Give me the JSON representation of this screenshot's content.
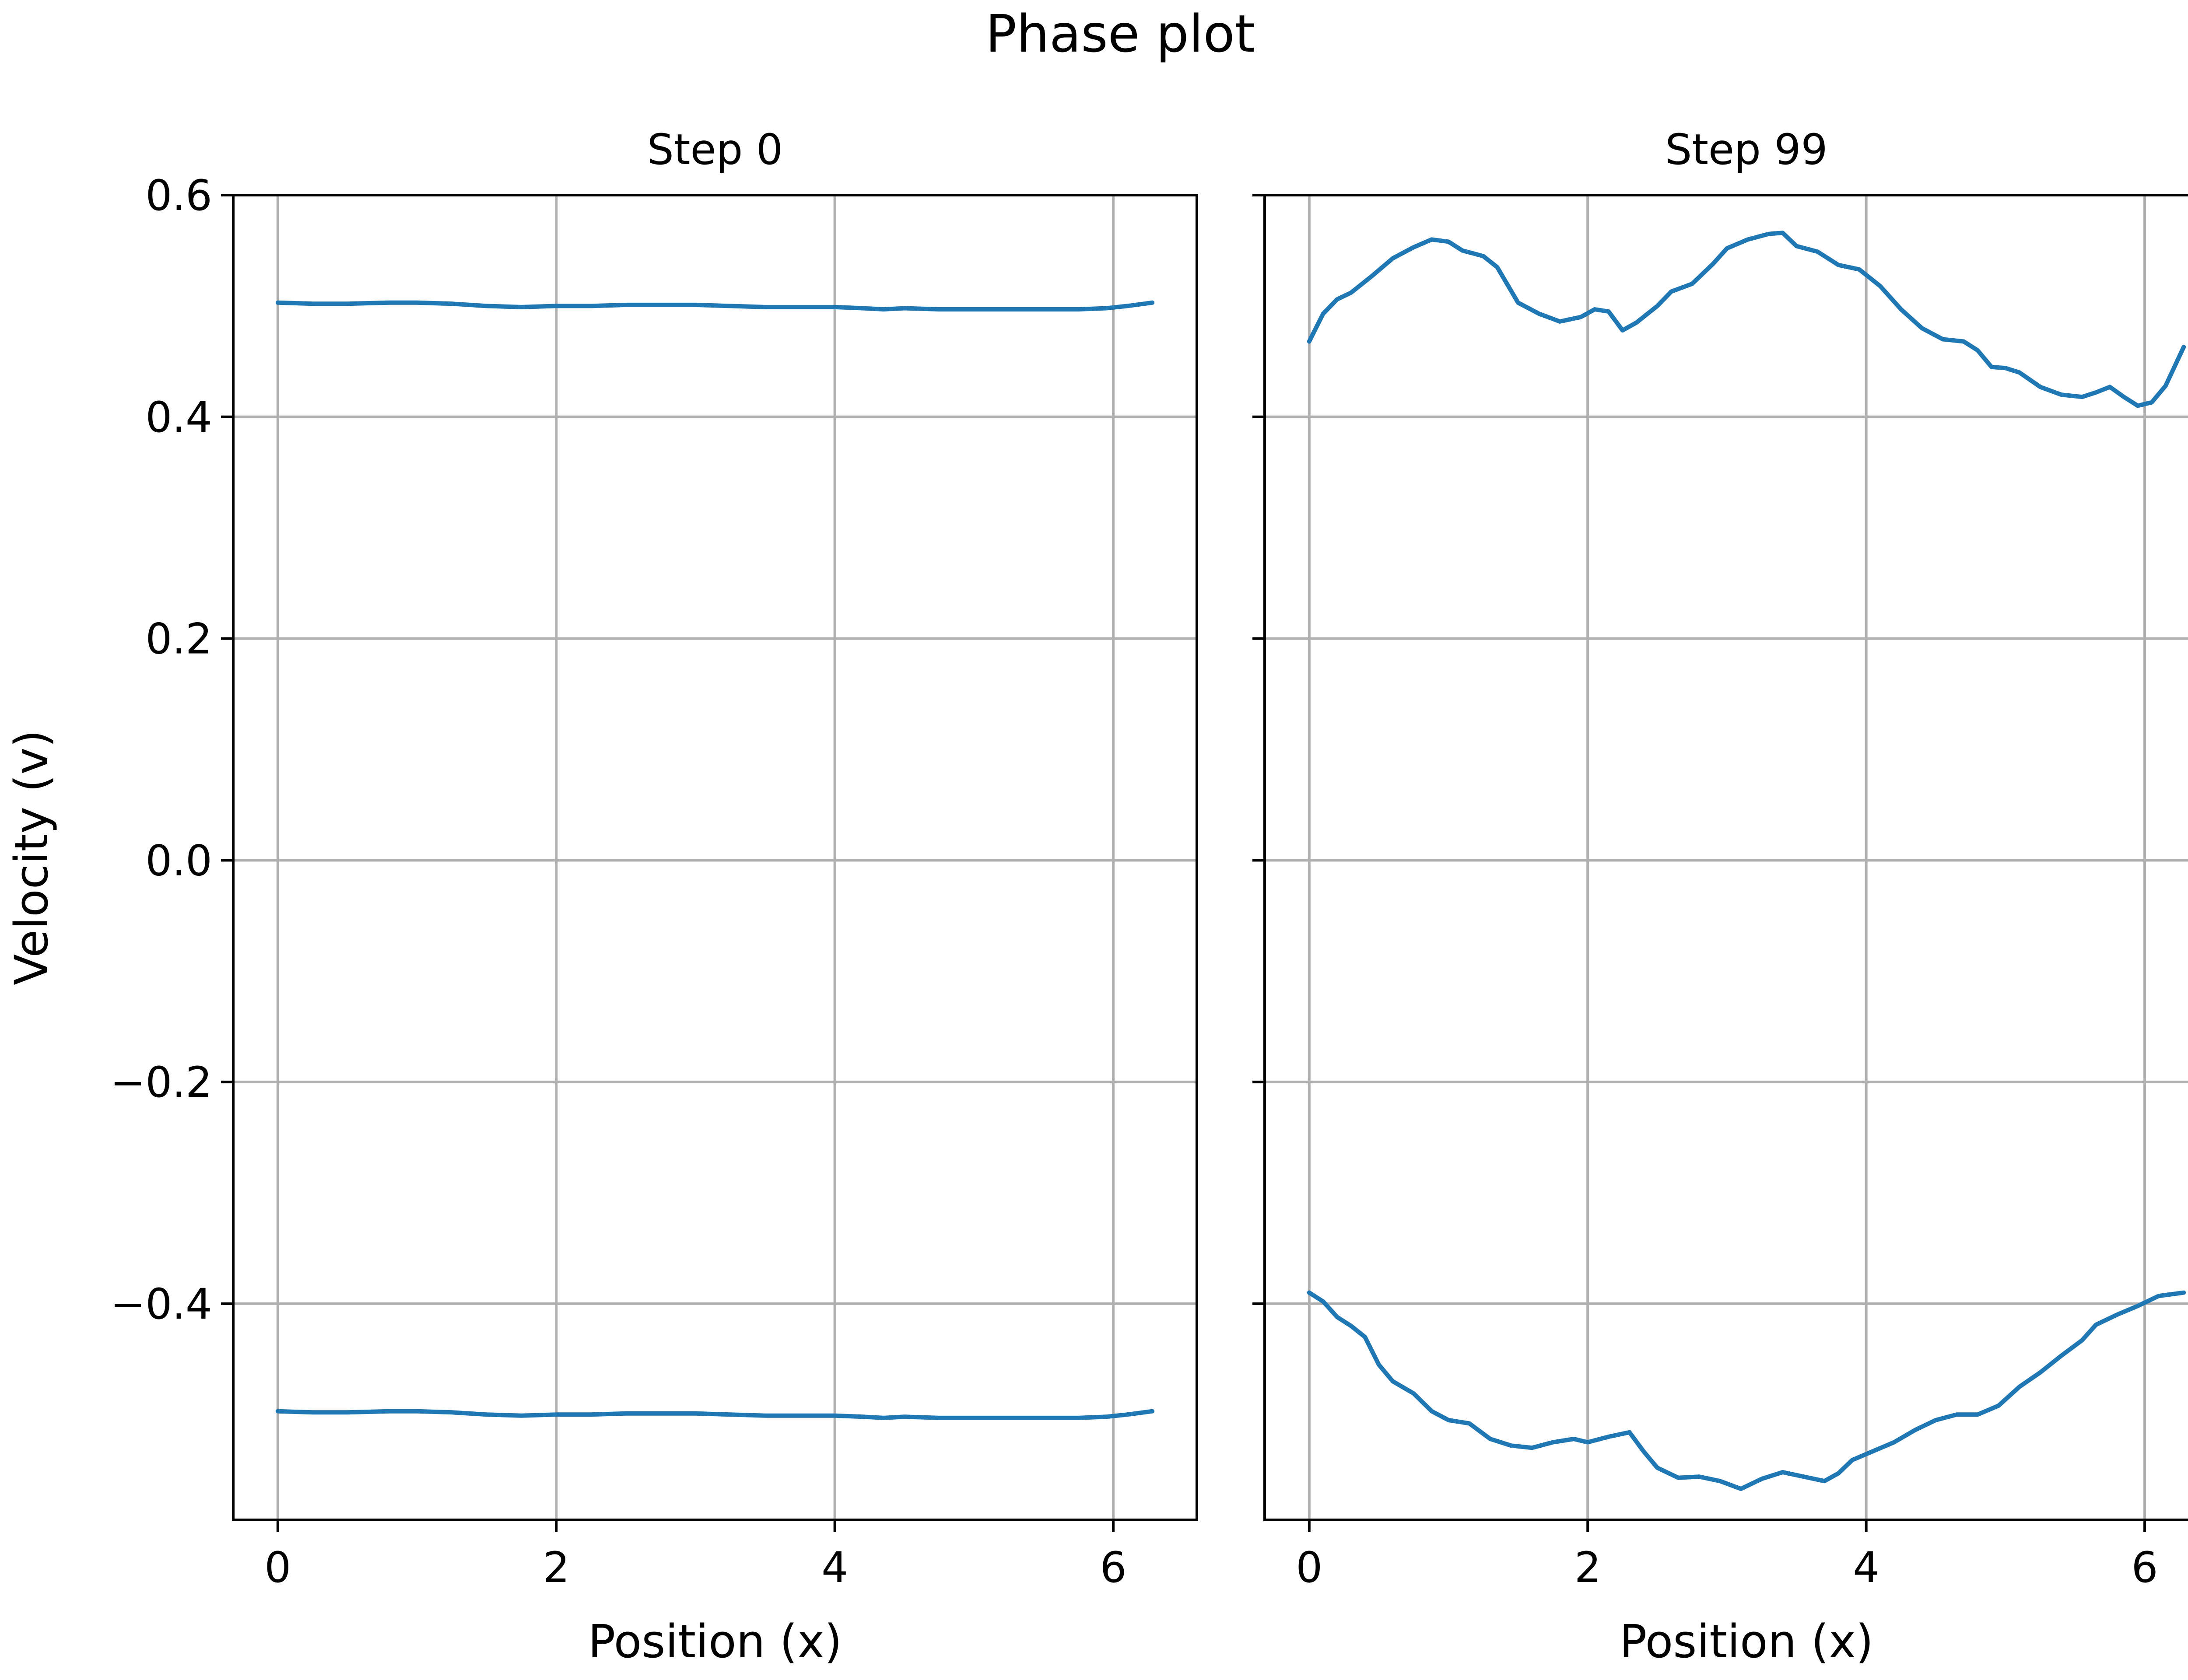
{
  "figure": {
    "title": "Phase plot"
  },
  "colors": {
    "series": "#1f77b4",
    "grid": "#b0b0b0",
    "axes": "#000000",
    "background": "#ffffff"
  },
  "chart_data": [
    {
      "type": "line",
      "title": "Step 0",
      "xlabel": "Position (x)",
      "ylabel": "Velocity (v)",
      "xlim": [
        -0.32,
        6.6
      ],
      "ylim": [
        -0.595,
        0.6
      ],
      "xticks": [
        0,
        2,
        4,
        6
      ],
      "xtick_labels": [
        "0",
        "2",
        "4",
        "6"
      ],
      "yticks": [
        -0.4,
        -0.2,
        0.0,
        0.2,
        0.4,
        0.6
      ],
      "ytick_labels": [
        "−0.4",
        "−0.2",
        "0.0",
        "0.2",
        "0.4",
        "0.6"
      ],
      "grid": true,
      "series": [
        {
          "x": [
            0.0,
            0.25,
            0.5,
            0.8,
            1.0,
            1.25,
            1.5,
            1.75,
            2.0,
            2.25,
            2.5,
            2.75,
            3.0,
            3.25,
            3.5,
            3.75,
            4.0,
            4.2,
            4.35,
            4.5,
            4.75,
            5.0,
            5.25,
            5.5,
            5.75,
            5.95,
            6.1,
            6.28
          ],
          "y": [
            0.503,
            0.502,
            0.502,
            0.503,
            0.503,
            0.502,
            0.5,
            0.499,
            0.5,
            0.5,
            0.501,
            0.501,
            0.501,
            0.5,
            0.499,
            0.499,
            0.499,
            0.498,
            0.497,
            0.498,
            0.497,
            0.497,
            0.497,
            0.497,
            0.497,
            0.498,
            0.5,
            0.503
          ]
        },
        {
          "x": [
            0.0,
            0.25,
            0.5,
            0.8,
            1.0,
            1.25,
            1.5,
            1.75,
            2.0,
            2.25,
            2.5,
            2.75,
            3.0,
            3.25,
            3.5,
            3.75,
            4.0,
            4.2,
            4.35,
            4.5,
            4.75,
            5.0,
            5.25,
            5.5,
            5.75,
            5.95,
            6.1,
            6.28
          ],
          "y": [
            -0.497,
            -0.498,
            -0.498,
            -0.497,
            -0.497,
            -0.498,
            -0.5,
            -0.501,
            -0.5,
            -0.5,
            -0.499,
            -0.499,
            -0.499,
            -0.5,
            -0.501,
            -0.501,
            -0.501,
            -0.502,
            -0.503,
            -0.502,
            -0.503,
            -0.503,
            -0.503,
            -0.503,
            -0.503,
            -0.502,
            -0.5,
            -0.497
          ]
        }
      ]
    },
    {
      "type": "line",
      "title": "Step 99",
      "xlabel": "Position (x)",
      "ylabel": "",
      "xlim": [
        -0.32,
        6.6
      ],
      "ylim": [
        -0.595,
        0.6
      ],
      "xticks": [
        0,
        2,
        4,
        6
      ],
      "xtick_labels": [
        "0",
        "2",
        "4",
        "6"
      ],
      "yticks": [
        -0.4,
        -0.2,
        0.0,
        0.2,
        0.4,
        0.6
      ],
      "ytick_labels": [],
      "grid": true,
      "series": [
        {
          "x": [
            0.0,
            0.1,
            0.2,
            0.3,
            0.45,
            0.6,
            0.75,
            0.88,
            1.0,
            1.1,
            1.25,
            1.35,
            1.5,
            1.65,
            1.8,
            1.95,
            2.05,
            2.15,
            2.25,
            2.35,
            2.5,
            2.6,
            2.75,
            2.9,
            3.0,
            3.15,
            3.3,
            3.4,
            3.5,
            3.65,
            3.8,
            3.95,
            4.1,
            4.25,
            4.4,
            4.55,
            4.7,
            4.8,
            4.9,
            5.0,
            5.1,
            5.25,
            5.4,
            5.55,
            5.65,
            5.75,
            5.85,
            5.95,
            6.05,
            6.15,
            6.28
          ],
          "y": [
            0.468,
            0.493,
            0.506,
            0.512,
            0.527,
            0.543,
            0.553,
            0.56,
            0.558,
            0.55,
            0.545,
            0.535,
            0.503,
            0.493,
            0.486,
            0.49,
            0.497,
            0.495,
            0.478,
            0.485,
            0.5,
            0.513,
            0.52,
            0.538,
            0.552,
            0.56,
            0.565,
            0.566,
            0.554,
            0.549,
            0.537,
            0.533,
            0.518,
            0.497,
            0.48,
            0.47,
            0.468,
            0.46,
            0.445,
            0.444,
            0.44,
            0.427,
            0.42,
            0.418,
            0.422,
            0.427,
            0.418,
            0.41,
            0.413,
            0.428,
            0.463
          ]
        },
        {
          "x": [
            0.0,
            0.1,
            0.2,
            0.3,
            0.4,
            0.5,
            0.6,
            0.75,
            0.88,
            1.0,
            1.15,
            1.3,
            1.45,
            1.6,
            1.75,
            1.9,
            2.0,
            2.15,
            2.3,
            2.4,
            2.5,
            2.65,
            2.8,
            2.95,
            3.1,
            3.25,
            3.4,
            3.55,
            3.7,
            3.8,
            3.9,
            4.05,
            4.2,
            4.35,
            4.5,
            4.65,
            4.8,
            4.95,
            5.1,
            5.25,
            5.4,
            5.55,
            5.65,
            5.8,
            5.95,
            6.1,
            6.28
          ],
          "y": [
            -0.39,
            -0.398,
            -0.412,
            -0.42,
            -0.43,
            -0.455,
            -0.47,
            -0.481,
            -0.497,
            -0.505,
            -0.508,
            -0.522,
            -0.528,
            -0.53,
            -0.525,
            -0.522,
            -0.525,
            -0.52,
            -0.516,
            -0.533,
            -0.548,
            -0.557,
            -0.556,
            -0.56,
            -0.567,
            -0.558,
            -0.552,
            -0.556,
            -0.56,
            -0.553,
            -0.541,
            -0.533,
            -0.525,
            -0.514,
            -0.505,
            -0.5,
            -0.5,
            -0.492,
            -0.475,
            -0.462,
            -0.447,
            -0.433,
            -0.419,
            -0.41,
            -0.402,
            -0.393,
            -0.39
          ]
        }
      ]
    }
  ]
}
